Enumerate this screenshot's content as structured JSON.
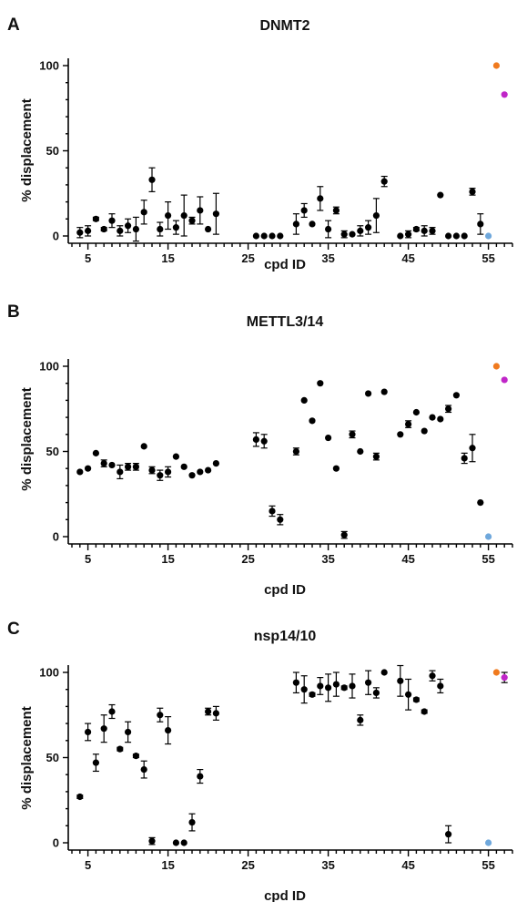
{
  "chart_data": [
    {
      "type": "scatter",
      "panel": "A",
      "title": "DNMT2",
      "xlabel": "cpd ID",
      "ylabel": "% displacement",
      "xlim": [
        3,
        58
      ],
      "ylim": [
        0,
        100
      ],
      "xticks": [
        5,
        15,
        25,
        35,
        45,
        55
      ],
      "yticks": [
        0,
        50,
        100
      ],
      "grid": false,
      "points": [
        {
          "x": 4,
          "y": 2,
          "err": 3
        },
        {
          "x": 5,
          "y": 3,
          "err": 3
        },
        {
          "x": 6,
          "y": 10,
          "err": 1
        },
        {
          "x": 7,
          "y": 4,
          "err": 1
        },
        {
          "x": 8,
          "y": 9,
          "err": 4
        },
        {
          "x": 9,
          "y": 3,
          "err": 3
        },
        {
          "x": 10,
          "y": 6,
          "err": 4
        },
        {
          "x": 11,
          "y": 4,
          "err": 7
        },
        {
          "x": 12,
          "y": 14,
          "err": 7
        },
        {
          "x": 13,
          "y": 33,
          "err": 7
        },
        {
          "x": 14,
          "y": 4,
          "err": 4
        },
        {
          "x": 15,
          "y": 12,
          "err": 8
        },
        {
          "x": 16,
          "y": 5,
          "err": 4
        },
        {
          "x": 17,
          "y": 12,
          "err": 12
        },
        {
          "x": 18,
          "y": 9,
          "err": 2
        },
        {
          "x": 19,
          "y": 15,
          "err": 8
        },
        {
          "x": 20,
          "y": 4,
          "err": 0
        },
        {
          "x": 21,
          "y": 13,
          "err": 12
        },
        {
          "x": 26,
          "y": 0,
          "err": 0
        },
        {
          "x": 27,
          "y": 0,
          "err": 0
        },
        {
          "x": 28,
          "y": 0,
          "err": 0
        },
        {
          "x": 29,
          "y": 0,
          "err": 0
        },
        {
          "x": 31,
          "y": 7,
          "err": 6
        },
        {
          "x": 32,
          "y": 15,
          "err": 4
        },
        {
          "x": 33,
          "y": 7,
          "err": 0
        },
        {
          "x": 34,
          "y": 22,
          "err": 7
        },
        {
          "x": 35,
          "y": 4,
          "err": 5
        },
        {
          "x": 36,
          "y": 15,
          "err": 2
        },
        {
          "x": 37,
          "y": 1,
          "err": 2
        },
        {
          "x": 38,
          "y": 1,
          "err": 0
        },
        {
          "x": 39,
          "y": 3,
          "err": 3
        },
        {
          "x": 40,
          "y": 5,
          "err": 4
        },
        {
          "x": 41,
          "y": 12,
          "err": 10
        },
        {
          "x": 42,
          "y": 32,
          "err": 3
        },
        {
          "x": 44,
          "y": 0,
          "err": 0
        },
        {
          "x": 45,
          "y": 1,
          "err": 2
        },
        {
          "x": 46,
          "y": 4,
          "err": 1
        },
        {
          "x": 47,
          "y": 3,
          "err": 3
        },
        {
          "x": 48,
          "y": 3,
          "err": 2
        },
        {
          "x": 49,
          "y": 24,
          "err": 0
        },
        {
          "x": 50,
          "y": 0,
          "err": 0
        },
        {
          "x": 51,
          "y": 0,
          "err": 0
        },
        {
          "x": 52,
          "y": 0,
          "err": 0
        },
        {
          "x": 53,
          "y": 26,
          "err": 2
        },
        {
          "x": 54,
          "y": 7,
          "err": 6
        },
        {
          "x": 55,
          "y": 0,
          "err": 0,
          "color": "#6fa8dc"
        },
        {
          "x": 56,
          "y": 100,
          "err": 0,
          "color": "#f07a1e"
        },
        {
          "x": 57,
          "y": 83,
          "err": 0,
          "color": "#c026c8"
        }
      ]
    },
    {
      "type": "scatter",
      "panel": "B",
      "title": "METTL3/14",
      "xlabel": "cpd ID",
      "ylabel": "% displacement",
      "xlim": [
        3,
        58
      ],
      "ylim": [
        0,
        100
      ],
      "xticks": [
        5,
        15,
        25,
        35,
        45,
        55
      ],
      "yticks": [
        0,
        50,
        100
      ],
      "grid": false,
      "points": [
        {
          "x": 4,
          "y": 38,
          "err": 0
        },
        {
          "x": 5,
          "y": 40,
          "err": 0
        },
        {
          "x": 6,
          "y": 49,
          "err": 0
        },
        {
          "x": 7,
          "y": 43,
          "err": 2
        },
        {
          "x": 8,
          "y": 42,
          "err": 0
        },
        {
          "x": 9,
          "y": 38,
          "err": 4
        },
        {
          "x": 10,
          "y": 41,
          "err": 2
        },
        {
          "x": 11,
          "y": 41,
          "err": 2
        },
        {
          "x": 12,
          "y": 53,
          "err": 0
        },
        {
          "x": 13,
          "y": 39,
          "err": 2
        },
        {
          "x": 14,
          "y": 36,
          "err": 3
        },
        {
          "x": 15,
          "y": 38,
          "err": 3
        },
        {
          "x": 16,
          "y": 47,
          "err": 0
        },
        {
          "x": 17,
          "y": 41,
          "err": 0
        },
        {
          "x": 18,
          "y": 36,
          "err": 0
        },
        {
          "x": 19,
          "y": 38,
          "err": 0
        },
        {
          "x": 20,
          "y": 39,
          "err": 0
        },
        {
          "x": 21,
          "y": 43,
          "err": 0
        },
        {
          "x": 26,
          "y": 57,
          "err": 4
        },
        {
          "x": 27,
          "y": 56,
          "err": 4
        },
        {
          "x": 28,
          "y": 15,
          "err": 3
        },
        {
          "x": 29,
          "y": 10,
          "err": 3
        },
        {
          "x": 31,
          "y": 50,
          "err": 2
        },
        {
          "x": 32,
          "y": 80,
          "err": 0
        },
        {
          "x": 33,
          "y": 68,
          "err": 0
        },
        {
          "x": 34,
          "y": 90,
          "err": 0
        },
        {
          "x": 35,
          "y": 58,
          "err": 0
        },
        {
          "x": 36,
          "y": 40,
          "err": 0
        },
        {
          "x": 37,
          "y": 1,
          "err": 2
        },
        {
          "x": 38,
          "y": 60,
          "err": 2
        },
        {
          "x": 39,
          "y": 50,
          "err": 0
        },
        {
          "x": 40,
          "y": 84,
          "err": 0
        },
        {
          "x": 41,
          "y": 47,
          "err": 2
        },
        {
          "x": 42,
          "y": 85,
          "err": 0
        },
        {
          "x": 44,
          "y": 60,
          "err": 0
        },
        {
          "x": 45,
          "y": 66,
          "err": 2
        },
        {
          "x": 46,
          "y": 73,
          "err": 0
        },
        {
          "x": 47,
          "y": 62,
          "err": 0
        },
        {
          "x": 48,
          "y": 70,
          "err": 0
        },
        {
          "x": 49,
          "y": 69,
          "err": 0
        },
        {
          "x": 50,
          "y": 75,
          "err": 2
        },
        {
          "x": 51,
          "y": 83,
          "err": 0
        },
        {
          "x": 52,
          "y": 46,
          "err": 3
        },
        {
          "x": 53,
          "y": 52,
          "err": 8
        },
        {
          "x": 54,
          "y": 20,
          "err": 0
        },
        {
          "x": 55,
          "y": 0,
          "err": 0,
          "color": "#6fa8dc"
        },
        {
          "x": 56,
          "y": 100,
          "err": 0,
          "color": "#f07a1e"
        },
        {
          "x": 57,
          "y": 92,
          "err": 0,
          "color": "#c026c8"
        }
      ]
    },
    {
      "type": "scatter",
      "panel": "C",
      "title": "nsp14/10",
      "xlabel": "cpd ID",
      "ylabel": "% displacement",
      "xlim": [
        3,
        58
      ],
      "ylim": [
        0,
        100
      ],
      "xticks": [
        5,
        15,
        25,
        35,
        45,
        55
      ],
      "yticks": [
        0,
        50,
        100
      ],
      "grid": false,
      "points": [
        {
          "x": 4,
          "y": 27,
          "err": 1
        },
        {
          "x": 5,
          "y": 65,
          "err": 5
        },
        {
          "x": 6,
          "y": 47,
          "err": 5
        },
        {
          "x": 7,
          "y": 67,
          "err": 8
        },
        {
          "x": 8,
          "y": 77,
          "err": 4
        },
        {
          "x": 9,
          "y": 55,
          "err": 1
        },
        {
          "x": 10,
          "y": 65,
          "err": 6
        },
        {
          "x": 11,
          "y": 51,
          "err": 1
        },
        {
          "x": 12,
          "y": 43,
          "err": 5
        },
        {
          "x": 13,
          "y": 1,
          "err": 2
        },
        {
          "x": 14,
          "y": 75,
          "err": 4
        },
        {
          "x": 15,
          "y": 66,
          "err": 8
        },
        {
          "x": 16,
          "y": 0,
          "err": 0
        },
        {
          "x": 17,
          "y": 0,
          "err": 0
        },
        {
          "x": 18,
          "y": 12,
          "err": 5
        },
        {
          "x": 19,
          "y": 39,
          "err": 4
        },
        {
          "x": 20,
          "y": 77,
          "err": 2
        },
        {
          "x": 21,
          "y": 76,
          "err": 4
        },
        {
          "x": 31,
          "y": 94,
          "err": 6
        },
        {
          "x": 32,
          "y": 90,
          "err": 8
        },
        {
          "x": 33,
          "y": 87,
          "err": 1
        },
        {
          "x": 34,
          "y": 92,
          "err": 5
        },
        {
          "x": 35,
          "y": 91,
          "err": 8
        },
        {
          "x": 36,
          "y": 93,
          "err": 7
        },
        {
          "x": 37,
          "y": 91,
          "err": 1
        },
        {
          "x": 38,
          "y": 92,
          "err": 7
        },
        {
          "x": 39,
          "y": 72,
          "err": 3
        },
        {
          "x": 40,
          "y": 94,
          "err": 7
        },
        {
          "x": 41,
          "y": 88,
          "err": 3
        },
        {
          "x": 42,
          "y": 100,
          "err": 0
        },
        {
          "x": 44,
          "y": 95,
          "err": 9
        },
        {
          "x": 45,
          "y": 87,
          "err": 9
        },
        {
          "x": 46,
          "y": 84,
          "err": 1
        },
        {
          "x": 47,
          "y": 77,
          "err": 1
        },
        {
          "x": 48,
          "y": 98,
          "err": 3
        },
        {
          "x": 49,
          "y": 92,
          "err": 4
        },
        {
          "x": 50,
          "y": 5,
          "err": 5
        },
        {
          "x": 55,
          "y": 0,
          "err": 0,
          "color": "#6fa8dc"
        },
        {
          "x": 56,
          "y": 100,
          "err": 0,
          "color": "#f07a1e"
        },
        {
          "x": 57,
          "y": 97,
          "err": 3,
          "color": "#c026c8"
        }
      ]
    }
  ]
}
